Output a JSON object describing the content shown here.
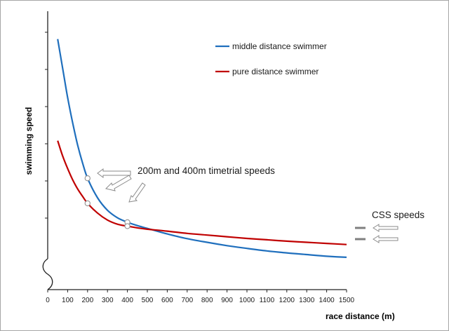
{
  "chart_data": {
    "type": "line",
    "title": "",
    "xlabel": "race distance (m)",
    "ylabel": "swimming speed",
    "xlim": [
      0,
      1500
    ],
    "ylim": [
      0,
      10
    ],
    "x_ticks": [
      "0",
      "100",
      "200",
      "300",
      "400",
      "500",
      "600",
      "700",
      "800",
      "900",
      "1000",
      "1100",
      "1200",
      "1300",
      "1400",
      "1500"
    ],
    "y_ticks_labeled": false,
    "grid": false,
    "legend_position": "top-right",
    "series": [
      {
        "name": "middle distance swimmer",
        "color": "#1f6fbd",
        "x": [
          50,
          75,
          100,
          125,
          150,
          175,
          200,
          250,
          300,
          350,
          400,
          450,
          500,
          600,
          700,
          800,
          900,
          1000,
          1100,
          1200,
          1300,
          1400,
          1500
        ],
        "y": [
          9.0,
          7.95,
          6.9,
          6.0,
          5.2,
          4.55,
          4.0,
          3.3,
          2.85,
          2.58,
          2.42,
          2.3,
          2.2,
          2.0,
          1.83,
          1.7,
          1.58,
          1.48,
          1.39,
          1.32,
          1.26,
          1.2,
          1.16
        ]
      },
      {
        "name": "pure distance swimmer",
        "color": "#c00000",
        "x": [
          50,
          75,
          100,
          125,
          150,
          175,
          200,
          250,
          300,
          350,
          400,
          450,
          500,
          600,
          700,
          800,
          900,
          1000,
          1100,
          1200,
          1300,
          1400,
          1500
        ],
        "y": [
          5.35,
          4.8,
          4.35,
          3.95,
          3.62,
          3.35,
          3.1,
          2.75,
          2.5,
          2.35,
          2.28,
          2.22,
          2.17,
          2.1,
          2.02,
          1.96,
          1.9,
          1.84,
          1.79,
          1.74,
          1.7,
          1.66,
          1.62
        ]
      }
    ],
    "markers": [
      {
        "label": "200m timetrial",
        "x": 200,
        "y": 4.0
      },
      {
        "label": "200m timetrial",
        "x": 200,
        "y": 3.1
      },
      {
        "label": "400m timetrial",
        "x": 400,
        "y": 2.42
      },
      {
        "label": "400m timetrial",
        "x": 400,
        "y": 2.28
      }
    ],
    "annotations": [
      "200m and 400m timetrial speeds",
      "CSS speeds"
    ]
  }
}
